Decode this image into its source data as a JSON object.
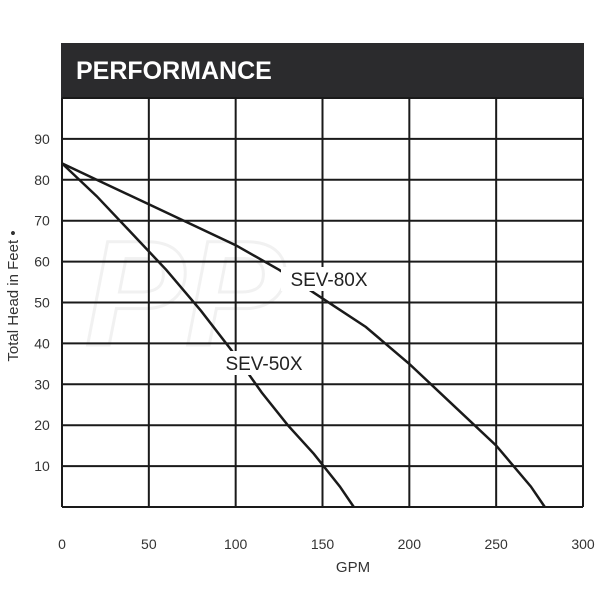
{
  "chart_data": {
    "type": "line",
    "title": "PERFORMANCE",
    "xlabel": "GPM",
    "ylabel": "Total Head in Feet •",
    "xlim": [
      0,
      300
    ],
    "ylim": [
      0,
      100
    ],
    "x_ticks": [
      "0",
      "50",
      "100",
      "150",
      "200",
      "250",
      "300"
    ],
    "y_ticks": [
      "10",
      "20",
      "30",
      "40",
      "50",
      "60",
      "70",
      "80",
      "90"
    ],
    "grid": true,
    "series": [
      {
        "name": "SEV-80X",
        "points": [
          [
            0,
            84
          ],
          [
            25,
            79
          ],
          [
            50,
            74
          ],
          [
            75,
            69
          ],
          [
            100,
            64
          ],
          [
            125,
            58
          ],
          [
            150,
            51
          ],
          [
            175,
            44
          ],
          [
            200,
            35
          ],
          [
            225,
            25
          ],
          [
            250,
            15
          ],
          [
            270,
            5
          ],
          [
            278,
            0
          ]
        ]
      },
      {
        "name": "SEV-50X",
        "points": [
          [
            0,
            84
          ],
          [
            20,
            76
          ],
          [
            40,
            67
          ],
          [
            60,
            58
          ],
          [
            80,
            48
          ],
          [
            100,
            37
          ],
          [
            115,
            28
          ],
          [
            130,
            20
          ],
          [
            145,
            13
          ],
          [
            160,
            5
          ],
          [
            168,
            0
          ]
        ]
      }
    ],
    "colors": {
      "title_bar": "#2b2b2d",
      "grid": "#1a1a1a",
      "line": "#1a1a1a"
    }
  }
}
